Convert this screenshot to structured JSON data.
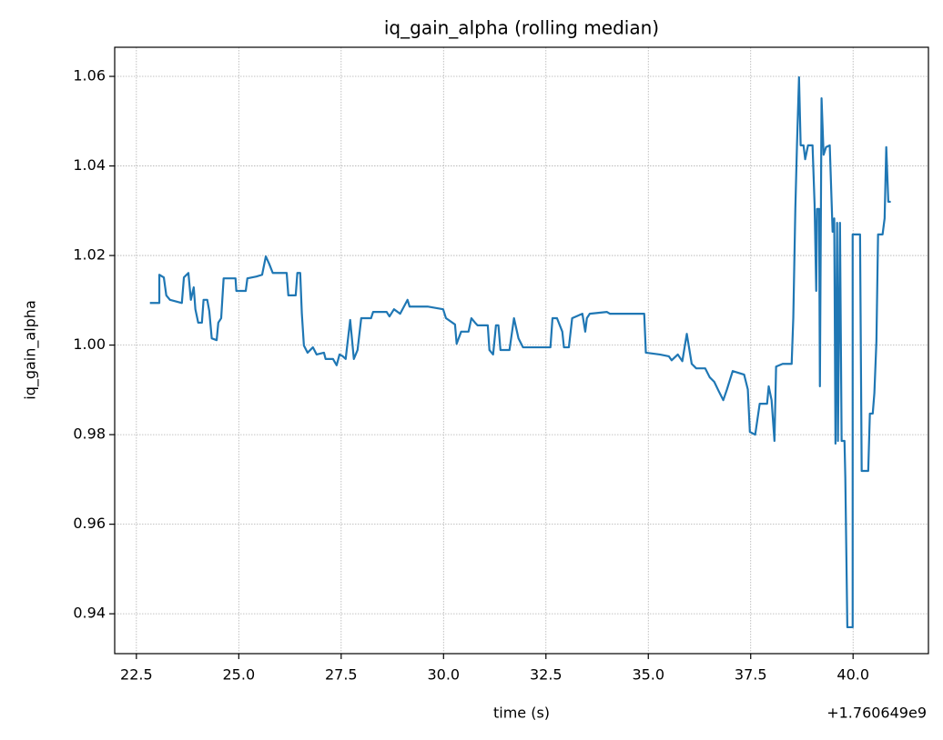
{
  "chart_data": {
    "type": "line",
    "title": "iq_gain_alpha (rolling median)",
    "x_label": "time (s)",
    "y_label": "iq_gain_alpha",
    "x_offset_label": "+1.760649e9",
    "xlim": [
      21.97,
      41.84
    ],
    "ylim": [
      0.9311,
      1.0665
    ],
    "xticks": [
      22.5,
      {
        "value": 25,
        "label": "25.0"
      },
      27.5,
      {
        "value": 30,
        "label": "30.0"
      },
      32.5,
      {
        "value": 35,
        "label": "35.0"
      },
      37.5,
      {
        "value": 40,
        "label": "40.0"
      }
    ],
    "yticks": [
      0.94,
      0.96,
      0.98,
      {
        "value": 1,
        "label": "1.00"
      },
      1.02,
      1.04,
      1.06
    ],
    "grid": true,
    "series": [
      {
        "name": "iq_gain_alpha",
        "color": "#1f77b4",
        "x": [
          22.83,
          23.06,
          23.06,
          23.17,
          23.23,
          23.32,
          23.61,
          23.66,
          23.77,
          23.83,
          23.9,
          23.94,
          24.01,
          24.1,
          24.14,
          24.23,
          24.28,
          24.34,
          24.46,
          24.5,
          24.57,
          24.63,
          24.92,
          24.94,
          25.17,
          25.21,
          25.32,
          25.43,
          25.57,
          25.66,
          25.74,
          25.83,
          26.17,
          26.21,
          26.39,
          26.43,
          26.5,
          26.54,
          26.59,
          26.68,
          26.81,
          26.9,
          27.08,
          27.12,
          27.3,
          27.39,
          27.46,
          27.54,
          27.61,
          27.72,
          27.81,
          27.9,
          27.99,
          28.23,
          28.28,
          28.61,
          28.68,
          28.79,
          28.94,
          29.12,
          29.17,
          29.61,
          29.99,
          30.06,
          30.28,
          30.32,
          30.43,
          30.61,
          30.68,
          30.77,
          30.83,
          31.08,
          31.12,
          31.21,
          31.28,
          31.34,
          31.39,
          31.61,
          31.72,
          31.83,
          31.94,
          32.61,
          32.66,
          32.77,
          32.9,
          32.94,
          33.06,
          33.14,
          33.39,
          33.46,
          33.5,
          33.57,
          33.99,
          34.06,
          34.9,
          34.94,
          35.28,
          35.5,
          35.57,
          35.72,
          35.83,
          35.94,
          36.06,
          36.17,
          36.39,
          36.5,
          36.61,
          36.72,
          36.83,
          36.92,
          37.06,
          37.34,
          37.43,
          37.48,
          37.61,
          37.72,
          37.9,
          37.94,
          38.01,
          38.08,
          38.12,
          38.28,
          38.5,
          38.54,
          38.59,
          38.63,
          38.68,
          38.72,
          38.79,
          38.83,
          38.9,
          39.01,
          39.06,
          39.1,
          39.12,
          39.17,
          39.19,
          39.23,
          39.28,
          39.34,
          39.43,
          39.5,
          39.54,
          39.57,
          39.61,
          39.63,
          39.68,
          39.72,
          39.79,
          39.81,
          39.86,
          39.99,
          39.99,
          40.17,
          40.21,
          40.37,
          40.41,
          40.48,
          40.52,
          40.57,
          40.61,
          40.72,
          40.77,
          40.81,
          40.86,
          40.92
        ],
        "values": [
          1.0094,
          1.0094,
          1.0157,
          1.0151,
          1.0111,
          1.0101,
          1.0094,
          1.0151,
          1.0161,
          1.0101,
          1.0129,
          1.008,
          1.005,
          1.005,
          1.0101,
          1.0101,
          1.0076,
          1.0015,
          1.0011,
          1.005,
          1.006,
          1.0149,
          1.0149,
          1.0121,
          1.0121,
          1.0149,
          1.0151,
          1.0153,
          1.0157,
          1.0198,
          1.0182,
          1.0161,
          1.0161,
          1.0111,
          1.0111,
          1.0161,
          1.0161,
          1.007,
          0.9999,
          0.9983,
          0.9995,
          0.9979,
          0.9983,
          0.9969,
          0.9969,
          0.9955,
          0.9979,
          0.9975,
          0.9969,
          1.0056,
          0.9969,
          0.9989,
          1.006,
          1.006,
          1.0074,
          1.0074,
          1.0064,
          1.008,
          1.007,
          1.0101,
          1.0086,
          1.0086,
          1.008,
          1.006,
          1.0046,
          1.0003,
          1.003,
          1.003,
          1.006,
          1.005,
          1.0044,
          1.0044,
          0.9989,
          0.9979,
          1.0044,
          1.0044,
          0.9989,
          0.9989,
          1.006,
          1.0015,
          0.9995,
          0.9995,
          1.006,
          1.006,
          1.003,
          0.9995,
          0.9995,
          1.006,
          1.007,
          1.003,
          1.006,
          1.007,
          1.0074,
          1.007,
          1.007,
          0.9983,
          0.9979,
          0.9975,
          0.9966,
          0.9979,
          0.9964,
          1.0025,
          0.9958,
          0.9948,
          0.9948,
          0.9928,
          0.9918,
          0.9897,
          0.9877,
          0.9901,
          0.9942,
          0.9934,
          0.9901,
          0.9806,
          0.98,
          0.9869,
          0.9869,
          0.9908,
          0.9877,
          0.9786,
          0.9952,
          0.9958,
          0.9958,
          1.006,
          1.0304,
          1.0446,
          1.0598,
          1.0446,
          1.0446,
          1.0415,
          1.0446,
          1.0446,
          1.0314,
          1.0121,
          1.0304,
          1.0304,
          0.9908,
          1.0551,
          1.0425,
          1.0442,
          1.0446,
          1.0253,
          1.0283,
          0.978,
          1.0273,
          0.9786,
          1.0273,
          0.9786,
          0.9786,
          0.9705,
          0.937,
          0.937,
          1.0247,
          1.0247,
          0.9719,
          0.9719,
          0.9847,
          0.9847,
          0.9893,
          1.0009,
          1.0247,
          1.0247,
          1.0283,
          1.0442,
          1.032,
          1.032
        ]
      }
    ]
  }
}
